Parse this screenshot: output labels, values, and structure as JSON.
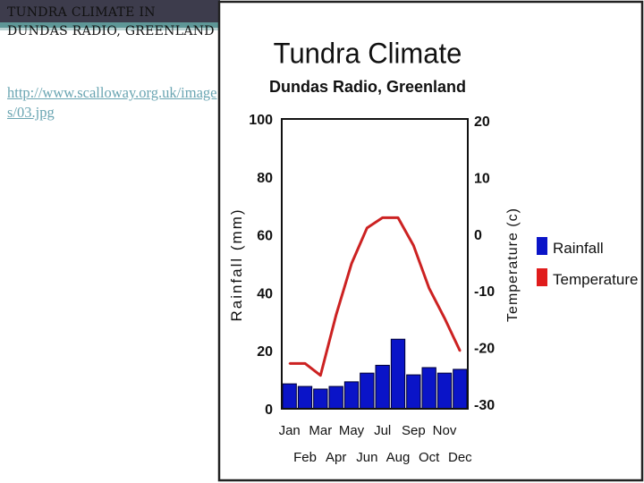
{
  "slide": {
    "title": "Tundra Climate in Dundas Radio, Greenland",
    "link": "http://www.scalloway.org.uk/images/03.jpg"
  },
  "chart_data": {
    "type": "bar+line",
    "title": "Tundra Climate",
    "subtitle": "Dundas Radio, Greenland",
    "categories": [
      "Jan",
      "Feb",
      "Mar",
      "Apr",
      "May",
      "Jun",
      "Jul",
      "Aug",
      "Sep",
      "Oct",
      "Nov",
      "Dec"
    ],
    "category_rows": [
      [
        "Jan",
        "Mar",
        "May",
        "Jul",
        "Sep",
        "Nov"
      ],
      [
        "Feb",
        "Apr",
        "Jun",
        "Aug",
        "Oct",
        "Dec"
      ]
    ],
    "series": [
      {
        "name": "Rainfall",
        "type": "bar",
        "axis": "left",
        "color": "#0a14c8",
        "values": [
          8.6,
          7.7,
          6.8,
          7.7,
          9.3,
          12.3,
          15,
          24,
          11.7,
          14.2,
          12.3,
          13.6
        ]
      },
      {
        "name": "Temperature",
        "type": "line",
        "axis": "right",
        "color": "#cc2222",
        "values": [
          -22.8,
          -22.8,
          -24.9,
          -14.3,
          -5.2,
          1.1,
          2.9,
          2.9,
          -2,
          -9.5,
          -14.8,
          -20.6
        ]
      }
    ],
    "ylabel": "Rainfall (mm)",
    "ylim": [
      0,
      100
    ],
    "yticks": [
      "0",
      "20",
      "40",
      "60",
      "80",
      "100"
    ],
    "y2label": "Temperature (c)",
    "y2lim": [
      -30,
      20
    ],
    "y2ticks": [
      "-30",
      "-20",
      "-10",
      "0",
      "10",
      "20"
    ],
    "legend": {
      "placement": "right",
      "entries": [
        "Rainfall",
        "Temperature"
      ]
    },
    "grid": false
  }
}
